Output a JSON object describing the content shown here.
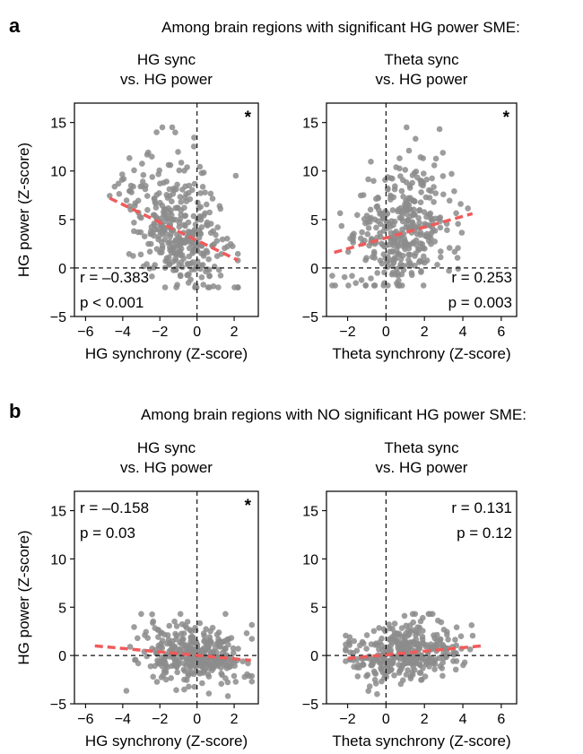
{
  "sections": [
    {
      "letter": "a",
      "title": "Among brain regions with significant HG power SME:"
    },
    {
      "letter": "b",
      "title": "Among brain regions with NO significant HG power SME:"
    }
  ],
  "colors": {
    "points": "#8c8c8c",
    "fit": "#ef5b5b",
    "axes": "#111111"
  },
  "chart_data": [
    {
      "id": "a-left",
      "section": "a",
      "type": "scatter",
      "title_lines": [
        "HG sync",
        "vs. HG power"
      ],
      "xlabel": "HG synchrony (Z-score)",
      "ylabel": "HG power (Z-score)",
      "xlim": [
        -6.6,
        3.3
      ],
      "ylim": [
        -5,
        17
      ],
      "xticks": [
        -6,
        -4,
        -2,
        0,
        2
      ],
      "yticks": [
        -5,
        0,
        5,
        10,
        15
      ],
      "ref_lines": {
        "x": 0,
        "y": 0
      },
      "fit": {
        "x": [
          -4.7,
          2.2
        ],
        "y": [
          7.2,
          0.8
        ]
      },
      "stats": {
        "r": "r = –0.383",
        "p": "p < 0.001",
        "position": "bottom-left"
      },
      "significant": true,
      "star": "*",
      "n_points": 360,
      "seed": 11,
      "cloud": {
        "mx": -1.0,
        "sx": 1.3,
        "xmin": -4.8,
        "xmax": 2.2,
        "intercept": 2.7,
        "slope": -0.9,
        "sy": 2.9,
        "ymin": -2.0,
        "ymax": 14.5
      }
    },
    {
      "id": "a-right",
      "section": "a",
      "type": "scatter",
      "title_lines": [
        "Theta sync",
        "vs. HG power"
      ],
      "xlabel": "Theta synchrony (Z-score)",
      "ylabel": "",
      "xlim": [
        -3.1,
        6.8
      ],
      "ylim": [
        -5,
        17
      ],
      "xticks": [
        -2,
        0,
        2,
        4,
        6
      ],
      "yticks": [
        -5,
        0,
        5,
        10,
        15
      ],
      "ref_lines": {
        "x": 0,
        "y": 0
      },
      "fit": {
        "x": [
          -2.7,
          4.5
        ],
        "y": [
          1.6,
          5.6
        ]
      },
      "stats": {
        "r": "r = 0.253",
        "p": "p = 0.003",
        "position": "bottom-right"
      },
      "significant": true,
      "star": "*",
      "n_points": 360,
      "seed": 23,
      "cloud": {
        "mx": 0.6,
        "sx": 1.3,
        "xmin": -2.8,
        "xmax": 4.6,
        "intercept": 3.1,
        "slope": 0.55,
        "sy": 2.9,
        "ymin": -1.8,
        "ymax": 14.5
      }
    },
    {
      "id": "b-left",
      "section": "b",
      "type": "scatter",
      "title_lines": [
        "HG sync",
        "vs. HG power"
      ],
      "xlabel": "HG synchrony (Z-score)",
      "ylabel": "HG power (Z-score)",
      "xlim": [
        -6.6,
        3.3
      ],
      "ylim": [
        -5,
        17
      ],
      "xticks": [
        -6,
        -4,
        -2,
        0,
        2
      ],
      "yticks": [
        -5,
        0,
        5,
        10,
        15
      ],
      "ref_lines": {
        "x": 0,
        "y": 0
      },
      "fit": {
        "x": [
          -5.5,
          2.9
        ],
        "y": [
          1.0,
          -0.5
        ]
      },
      "stats": {
        "r": "r = –0.158",
        "p": "p = 0.03",
        "position": "top-left"
      },
      "significant": true,
      "star": "*",
      "n_points": 360,
      "seed": 37,
      "cloud": {
        "mx": -0.2,
        "sx": 1.35,
        "xmin": -5.6,
        "xmax": 2.95,
        "intercept": 0.0,
        "slope": -0.18,
        "sy": 1.35,
        "ymin": -4.2,
        "ymax": 4.3
      }
    },
    {
      "id": "b-right",
      "section": "b",
      "type": "scatter",
      "title_lines": [
        "Theta sync",
        "vs. HG power"
      ],
      "xlabel": "Theta synchrony (Z-score)",
      "ylabel": "",
      "xlim": [
        -3.1,
        6.8
      ],
      "ylim": [
        -5,
        17
      ],
      "xticks": [
        -2,
        0,
        2,
        4,
        6
      ],
      "yticks": [
        -5,
        0,
        5,
        10,
        15
      ],
      "ref_lines": {
        "x": 0,
        "y": 0
      },
      "fit": {
        "x": [
          -2.0,
          5.0
        ],
        "y": [
          -0.3,
          1.0
        ]
      },
      "stats": {
        "r": "r = 0.131",
        "p": "p = 0.12",
        "position": "top-right"
      },
      "significant": false,
      "star": "",
      "n_points": 360,
      "seed": 53,
      "cloud": {
        "mx": 0.9,
        "sx": 1.3,
        "xmin": -2.1,
        "xmax": 5.0,
        "intercept": 0.1,
        "slope": 0.18,
        "sy": 1.35,
        "ymin": -4.0,
        "ymax": 4.3
      }
    }
  ]
}
